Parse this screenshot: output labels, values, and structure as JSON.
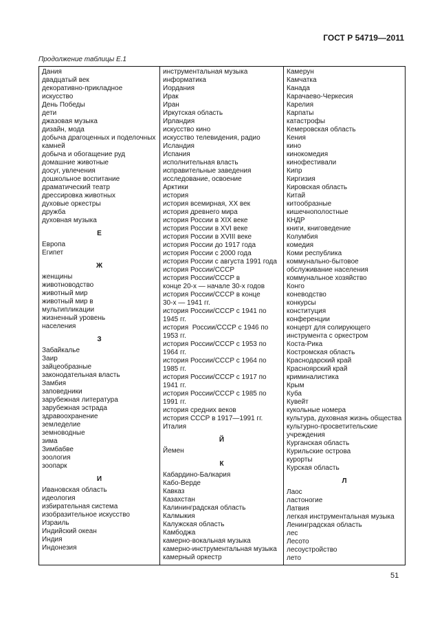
{
  "header": {
    "standard": "ГОСТ Р 54719—2011",
    "caption": "Продолжение таблицы Е.1"
  },
  "columns": [
    {
      "blocks": [
        {
          "heading": "",
          "items": [
            "Дания",
            "двадцатый век",
            "декоративно-прикладное\nискусство",
            "День Победы",
            "дети",
            "джазовая музыка",
            "дизайн, мода",
            "добыча драгоценных и поделочных\nкамней",
            "добыча и обогащение руд",
            "домашние животные",
            "досуг, увлечения",
            "дошкольное воспитание",
            "драматический театр",
            "дрессировка животных",
            "духовые оркестры",
            "дружба",
            "духовная музыка"
          ]
        },
        {
          "heading": "Е",
          "items": [
            "Европа",
            "Египет"
          ]
        },
        {
          "heading": "Ж",
          "items": [
            "женщины",
            "животноводство",
            "животный мир",
            "животный мир в\nмультипликации",
            "жизненный уровень\nнаселения"
          ]
        },
        {
          "heading": "З",
          "items": [
            "Забайкалье",
            "Заир",
            "зайцеобразные",
            "законодательная власть",
            "Замбия",
            "заповедники",
            "зарубежная литература",
            "зарубежная эстрада",
            "здравоохранение",
            "земледелие",
            "земноводные",
            "зима",
            "Зимбабве",
            "зоология",
            "зоопарк"
          ]
        },
        {
          "heading": "И",
          "items": [
            "Ивановская область",
            "идеология",
            "избирательная система",
            "изобразительное искусство",
            "Израиль",
            "Индийский океан",
            "Индия",
            "Индонезия"
          ]
        }
      ]
    },
    {
      "blocks": [
        {
          "heading": "",
          "items": [
            "инструментальная музыка",
            "информатика",
            "Иордания",
            "Ирак",
            "Иран",
            "Иркутская область",
            "Ирландия",
            "искусство кино",
            "искусство телевидения, радио",
            "Исландия",
            "Испания",
            "исполнительная власть",
            "исправительные заведения",
            "исследование, освоение\nАрктики",
            "история",
            "история всемирная, XX век",
            "история древнего мира",
            "история России в XIX веке",
            "история России в XVI веке",
            "история России в XVIII веке",
            "история России до 1917 года",
            "история России с 2000 года",
            "история России с августа 1991 года",
            "история России/СССР",
            "история России/СССР в\nконце 20-х — начале 30-х годов",
            "история России/СССР в конце\n30-х — 1941 гг.",
            "история России/СССР с 1941 по\n1945 гг.",
            "история  России/СССР с 1946 по\n1953 гг.",
            "история России/СССР с 1953 по\n1964 гг.",
            "история России/СССР с 1964 по\n1985 гг.",
            "история России/СССР с 1917 по\n1941 гг.",
            "история России/СССР с 1985 по\n1991 гг.",
            "история средних веков",
            "история СССР в 1917—1991 гг.",
            "Италия"
          ]
        },
        {
          "heading": "Й",
          "items": [
            "Йемен"
          ]
        },
        {
          "heading": "К",
          "items": [
            "Кабардино-Балкария",
            "Кабо-Верде",
            "Кавказ",
            "Казахстан",
            "Калининградская область",
            "Калмыкия",
            "Калужская область",
            "Камбоджа",
            "камерно-вокальная музыка",
            "камерно-инструментальная музыка",
            "камерный оркестр"
          ]
        }
      ]
    },
    {
      "blocks": [
        {
          "heading": "",
          "items": [
            "Камерун",
            "Камчатка",
            "Канада",
            "Карачаево-Черкесия",
            "Карелия",
            "Карпаты",
            "катастрофы",
            "Кемеровская область",
            "Кения",
            "кино",
            "кинокомедия",
            "кинофестивали",
            "Кипр",
            "Киргизия",
            "Кировская область",
            "Китай",
            "китообразные",
            "кишечнополостные",
            "КНДР",
            "книги, книговедение",
            "Колумбия",
            "комедия",
            "Коми республика",
            "коммунально-бытовое\nобслуживание населения",
            "коммунальное хозяйство",
            "Конго",
            "коневодство",
            "конкурсы",
            "конституция",
            "конференции",
            "концерт для солирующего\nинструмента с оркестром",
            "Коста-Рика",
            "Костромская область",
            "Краснодарский край",
            "Красноярский край",
            "криминалистика",
            "Крым",
            "Куба",
            "Кувейт",
            "кукольные номера",
            "культура, духовная жизнь общества",
            "культурно-просветительские\nучреждения",
            "Курганская область",
            "Курильские острова",
            "курорты",
            "Курская область"
          ]
        },
        {
          "heading": "Л",
          "items": [
            "Лаос",
            "ластоногие",
            "Латвия",
            "легкая инструментальная музыка",
            "Ленинградская область",
            "лес",
            "Лесото",
            "лесоустройство",
            "лето"
          ]
        }
      ]
    }
  ],
  "footer": {
    "page_number": "51"
  }
}
